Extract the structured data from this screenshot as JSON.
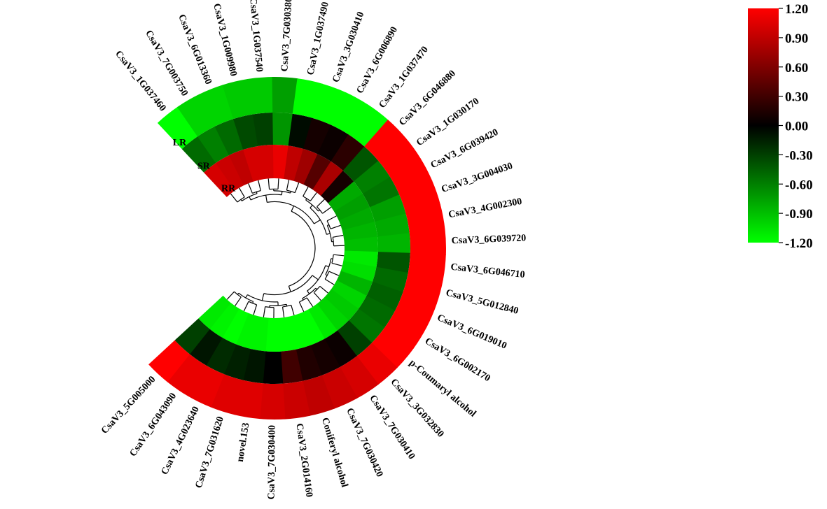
{
  "chart_data": {
    "type": "heatmap",
    "layout": "circular",
    "rings": [
      "RR",
      "SR",
      "LR"
    ],
    "rows": [
      {
        "label": "CsaV3_1G037460",
        "values": [
          1.0,
          -0.5,
          -1.2
        ]
      },
      {
        "label": "CsaV3_7G003750",
        "values": [
          0.95,
          -0.6,
          -1.0
        ]
      },
      {
        "label": "CsaV3_6G013360",
        "values": [
          0.9,
          -0.5,
          -1.0
        ]
      },
      {
        "label": "CsaV3_1G009980",
        "values": [
          1.0,
          -0.35,
          -0.95
        ]
      },
      {
        "label": "CsaV3_1G037540",
        "values": [
          1.0,
          -0.3,
          -0.95
        ]
      },
      {
        "label": "CsaV3_7G030380",
        "values": [
          1.1,
          -0.7,
          -0.75
        ]
      },
      {
        "label": "CsaV3_1G037490",
        "values": [
          0.9,
          -0.05,
          -1.2
        ]
      },
      {
        "label": "CsaV3_3G030410",
        "values": [
          0.75,
          0.1,
          -1.2
        ]
      },
      {
        "label": "CsaV3_6G006890",
        "values": [
          0.4,
          0.05,
          -1.2
        ]
      },
      {
        "label": "CsaV3_1G037470",
        "values": [
          0.8,
          0.2,
          -1.2
        ]
      },
      {
        "label": "CsaV3_6G046880",
        "values": [
          0.1,
          -0.4,
          1.2
        ]
      },
      {
        "label": "CsaV3_1G030170",
        "values": [
          -0.8,
          -0.6,
          1.2
        ]
      },
      {
        "label": "CsaV3_6G039420",
        "values": [
          -0.75,
          -0.55,
          1.2
        ]
      },
      {
        "label": "CsaV3_3G004030",
        "values": [
          -0.8,
          -0.75,
          1.2
        ]
      },
      {
        "label": "CsaV3_4G002300",
        "values": [
          -0.85,
          -0.8,
          1.2
        ]
      },
      {
        "label": "CsaV3_6G039720",
        "values": [
          -0.9,
          -0.85,
          1.2
        ]
      },
      {
        "label": "CsaV3_6G046710",
        "values": [
          -1.1,
          -0.4,
          1.2
        ]
      },
      {
        "label": "CsaV3_5G012840",
        "values": [
          -1.05,
          -0.5,
          1.2
        ]
      },
      {
        "label": "CsaV3_6G019010",
        "values": [
          -0.85,
          -0.45,
          1.2
        ]
      },
      {
        "label": "CsaV3_6G002170",
        "values": [
          -1.0,
          -0.5,
          1.2
        ]
      },
      {
        "label": "p-Coumaryl alcohol",
        "values": [
          -0.95,
          -0.55,
          1.2
        ]
      },
      {
        "label": "CsaV3_3G032830",
        "values": [
          -1.0,
          -0.3,
          1.1
        ]
      },
      {
        "label": "CsaV3_7G030410",
        "values": [
          -1.1,
          0.05,
          1.0
        ]
      },
      {
        "label": "CsaV3_7G030420",
        "values": [
          -1.2,
          0.1,
          0.95
        ]
      },
      {
        "label": "Coniferyl alcohol",
        "values": [
          -1.2,
          0.15,
          0.9
        ]
      },
      {
        "label": "CsaV3_2G014160",
        "values": [
          -1.2,
          0.3,
          0.95
        ]
      },
      {
        "label": "CsaV3_7G030400",
        "values": [
          -1.2,
          0.0,
          1.0
        ]
      },
      {
        "label": "novel.153",
        "values": [
          -1.15,
          -0.1,
          1.05
        ]
      },
      {
        "label": "CsaV3_7G031620",
        "values": [
          -1.15,
          -0.15,
          1.05
        ]
      },
      {
        "label": "CsaV3_4G023640",
        "values": [
          -1.2,
          -0.2,
          1.1
        ]
      },
      {
        "label": "CsaV3_6G043090",
        "values": [
          -1.15,
          -0.1,
          1.1
        ]
      },
      {
        "label": "CsaV3_5G005000",
        "values": [
          -1.1,
          -0.3,
          1.2
        ]
      }
    ],
    "color_scale": {
      "min": -1.2,
      "max": 1.2,
      "colors": [
        "#00ff00",
        "#000000",
        "#ff0000"
      ],
      "ticks": [
        "1.20",
        "0.90",
        "0.60",
        "0.30",
        "0.00",
        "-0.30",
        "-0.60",
        "-0.90",
        "-1.20"
      ],
      "legend_position": "right"
    }
  }
}
